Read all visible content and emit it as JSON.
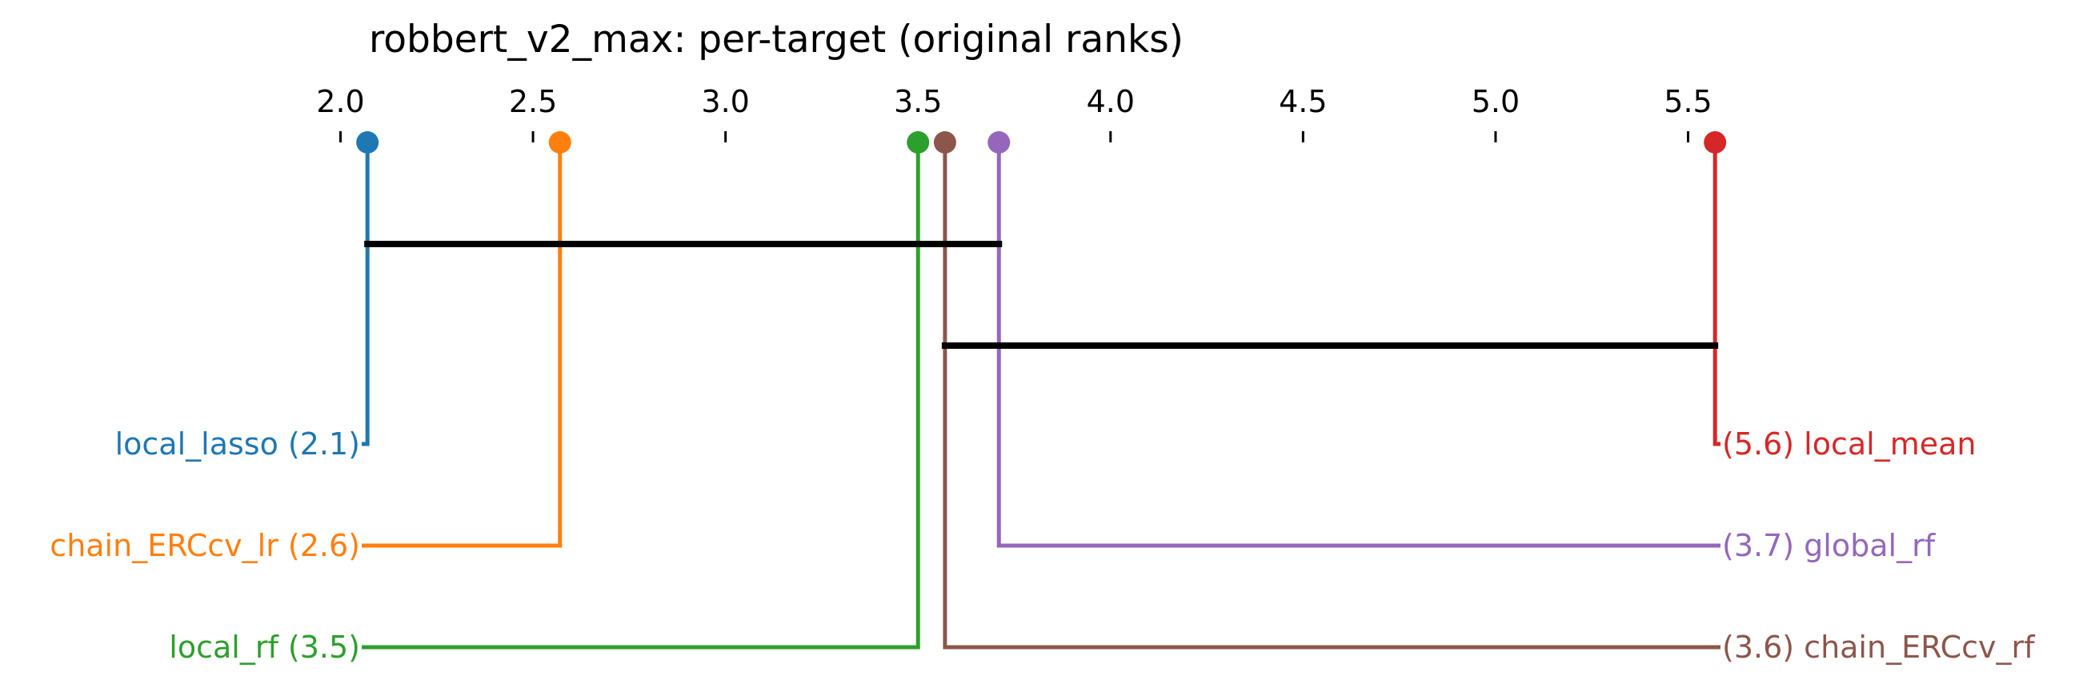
{
  "chart_data": {
    "type": "critical-difference",
    "title": "robbert_v2_max: per-target (original ranks)",
    "xlim": [
      2.0,
      5.5
    ],
    "ticks": [
      2.0,
      2.5,
      3.0,
      3.5,
      4.0,
      4.5,
      5.0,
      5.5
    ],
    "tick_labels": [
      "2.0",
      "2.5",
      "3.0",
      "3.5",
      "4.0",
      "4.5",
      "5.0",
      "5.5"
    ],
    "methods": [
      {
        "name": "local_lasso",
        "rank": 2.07,
        "rank_label": "2.1",
        "side": "left",
        "row": 0,
        "color": "#1f77b4"
      },
      {
        "name": "chain_ERCcv_lr",
        "rank": 2.57,
        "rank_label": "2.6",
        "side": "left",
        "row": 1,
        "color": "#ff7f0e"
      },
      {
        "name": "local_rf",
        "rank": 3.5,
        "rank_label": "3.5",
        "side": "left",
        "row": 2,
        "color": "#2ca02c"
      },
      {
        "name": "local_mean",
        "rank": 5.57,
        "rank_label": "5.6",
        "side": "right",
        "row": 0,
        "color": "#d62728"
      },
      {
        "name": "global_rf",
        "rank": 3.71,
        "rank_label": "3.7",
        "side": "right",
        "row": 1,
        "color": "#9467bd"
      },
      {
        "name": "chain_ERCcv_rf",
        "rank": 3.57,
        "rank_label": "3.6",
        "side": "right",
        "row": 2,
        "color": "#8c564b"
      }
    ],
    "cliques": [
      {
        "from": 2.07,
        "to": 3.71
      },
      {
        "from": 3.57,
        "to": 5.57
      }
    ]
  }
}
